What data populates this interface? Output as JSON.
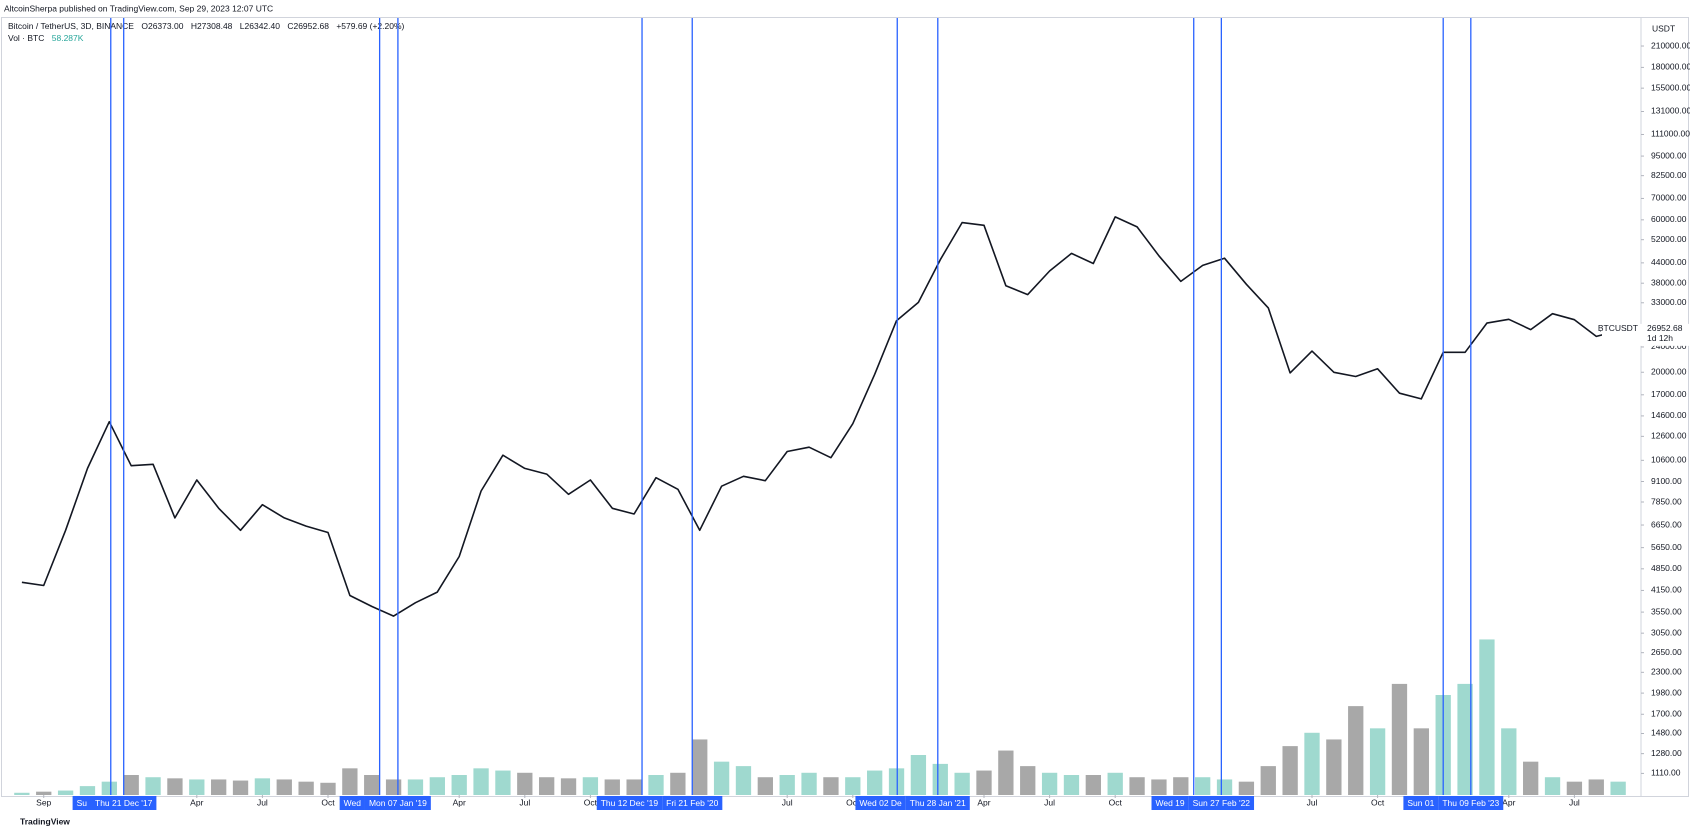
{
  "header": {
    "published": "AltcoinSherpa published on TradingView.com, Sep 29, 2023 12:07 UTC",
    "footer": "TradingView"
  },
  "chart_data": {
    "type": "line",
    "log_scale": true,
    "grid": false,
    "legend": {
      "open": "O26373.00",
      "high": "H27308.48",
      "low": "L26342.40",
      "close": "C26952.68",
      "change": "+579.69 (+2.20%)",
      "volume": "58.287K"
    },
    "currency": "USDT",
    "price_label": {
      "symbol": "BTCUSDT",
      "value": 26952.68,
      "countdown": "1d 12h"
    },
    "x": [
      "2017-08",
      "2017-09",
      "2017-10",
      "2017-11",
      "2017-12",
      "2018-01",
      "2018-02",
      "2018-03",
      "2018-04",
      "2018-05",
      "2018-06",
      "2018-07",
      "2018-08",
      "2018-09",
      "2018-10",
      "2018-11",
      "2018-12",
      "2019-01",
      "2019-02",
      "2019-03",
      "2019-04",
      "2019-05",
      "2019-06",
      "2019-07",
      "2019-08",
      "2019-09",
      "2019-10",
      "2019-11",
      "2019-12",
      "2020-01",
      "2020-02",
      "2020-03",
      "2020-04",
      "2020-05",
      "2020-06",
      "2020-07",
      "2020-08",
      "2020-09",
      "2020-10",
      "2020-11",
      "2020-12",
      "2021-01",
      "2021-02",
      "2021-03",
      "2021-04",
      "2021-05",
      "2021-06",
      "2021-07",
      "2021-08",
      "2021-09",
      "2021-10",
      "2021-11",
      "2021-12",
      "2022-01",
      "2022-02",
      "2022-03",
      "2022-04",
      "2022-05",
      "2022-06",
      "2022-07",
      "2022-08",
      "2022-09",
      "2022-10",
      "2022-11",
      "2022-12",
      "2023-01",
      "2023-02",
      "2023-03",
      "2023-04",
      "2023-05",
      "2023-06",
      "2023-07",
      "2023-08",
      "2023-09"
    ],
    "series": [
      {
        "name": "Bitcoin / TetherUS, 3D, BINANCE",
        "color": "#131722",
        "values": [
          4400,
          4300,
          6400,
          10000,
          14000,
          10200,
          10300,
          7000,
          9200,
          7500,
          6400,
          7700,
          7000,
          6600,
          6300,
          4000,
          3700,
          3450,
          3800,
          4100,
          5300,
          8500,
          11000,
          10000,
          9600,
          8300,
          9200,
          7500,
          7200,
          9350,
          8600,
          6400,
          8800,
          9450,
          9150,
          11300,
          11650,
          10800,
          13800,
          19700,
          29000,
          33100,
          45000,
          58800,
          57700,
          37300,
          35000,
          41500,
          47100,
          43800,
          61300,
          57000,
          46300,
          38500,
          43200,
          45500,
          37700,
          31800,
          19900,
          23300,
          20000,
          19400,
          20500,
          17200,
          16500,
          23100,
          23100,
          28500,
          29300,
          27200,
          30500,
          29200,
          25900,
          26950
        ]
      },
      {
        "name": "Vol · BTC",
        "axis": "y2",
        "up_color": "#9fd9cf",
        "down_color": "#a8a8a8",
        "values": [
          10000,
          15000,
          20000,
          40000,
          60000,
          90000,
          80000,
          75000,
          70000,
          70000,
          65000,
          75000,
          70000,
          60000,
          55000,
          120000,
          90000,
          70000,
          70000,
          80000,
          90000,
          120000,
          110000,
          100000,
          80000,
          75000,
          80000,
          70000,
          70000,
          90000,
          100000,
          250000,
          150000,
          130000,
          80000,
          90000,
          100000,
          80000,
          80000,
          110000,
          120000,
          180000,
          140000,
          100000,
          110000,
          200000,
          130000,
          100000,
          90000,
          90000,
          100000,
          80000,
          70000,
          80000,
          80000,
          70000,
          60000,
          130000,
          220000,
          280000,
          250000,
          400000,
          300000,
          500000,
          300000,
          450000,
          500000,
          700000,
          300000,
          150000,
          80000,
          60000,
          70000,
          60000
        ]
      }
    ],
    "xlim": [
      "2017-07",
      "2023-10"
    ],
    "xticks": [
      {
        "value": "2017-09",
        "label": "Sep"
      },
      {
        "value": "2018-04",
        "label": "Apr"
      },
      {
        "value": "2018-07",
        "label": "Jul"
      },
      {
        "value": "2018-10",
        "label": "Oct"
      },
      {
        "value": "2019-04",
        "label": "Apr"
      },
      {
        "value": "2019-07",
        "label": "Jul"
      },
      {
        "value": "2019-10",
        "label": "Oct"
      },
      {
        "value": "2020-07",
        "label": "Jul"
      },
      {
        "value": "2020-10",
        "label": "Oct"
      },
      {
        "value": "2021-04",
        "label": "Apr"
      },
      {
        "value": "2021-07",
        "label": "Jul"
      },
      {
        "value": "2021-10",
        "label": "Oct"
      },
      {
        "value": "2022-07",
        "label": "Jul"
      },
      {
        "value": "2022-10",
        "label": "Oct"
      },
      {
        "value": "2023-04",
        "label": "Apr"
      },
      {
        "value": "2023-07",
        "label": "Jul"
      }
    ],
    "markers": [
      {
        "x": "2017-12-03",
        "label": "Su"
      },
      {
        "x": "2017-12-21",
        "label": "Thu 21 Dec '17"
      },
      {
        "x": "2018-12-12",
        "label": "Wed"
      },
      {
        "x": "2019-01-07",
        "label": "Mon 07 Jan '19"
      },
      {
        "x": "2019-12-12",
        "label": "Thu 12 Dec '19"
      },
      {
        "x": "2020-02-21",
        "label": "Fri 21 Feb '20"
      },
      {
        "x": "2020-12-02",
        "label": "Wed 02 De"
      },
      {
        "x": "2021-01-28",
        "label": "Thu 28 Jan '21"
      },
      {
        "x": "2022-01-19",
        "label": "Wed 19"
      },
      {
        "x": "2022-02-27",
        "label": "Sun 27 Feb '22"
      },
      {
        "x": "2023-01-01",
        "label": "Sun 01"
      },
      {
        "x": "2023-02-09",
        "label": "Thu 09 Feb '23"
      }
    ],
    "ylim": [
      950,
      257000
    ],
    "yticks": [
      {
        "value": 210000,
        "label": "210000.00"
      },
      {
        "value": 180000,
        "label": "180000.00"
      },
      {
        "value": 155000,
        "label": "155000.00"
      },
      {
        "value": 131000,
        "label": "131000.00"
      },
      {
        "value": 111000,
        "label": "111000.00"
      },
      {
        "value": 95000,
        "label": "95000.00"
      },
      {
        "value": 82500,
        "label": "82500.00"
      },
      {
        "value": 70000,
        "label": "70000.00"
      },
      {
        "value": 60000,
        "label": "60000.00"
      },
      {
        "value": 52000,
        "label": "52000.00"
      },
      {
        "value": 44000,
        "label": "44000.00"
      },
      {
        "value": 38000,
        "label": "38000.00"
      },
      {
        "value": 33000,
        "label": "33000.00"
      },
      {
        "value": 24000,
        "label": "24000.00"
      },
      {
        "value": 20000,
        "label": "20000.00"
      },
      {
        "value": 17000,
        "label": "17000.00"
      },
      {
        "value": 14600,
        "label": "14600.00"
      },
      {
        "value": 12600,
        "label": "12600.00"
      },
      {
        "value": 10600,
        "label": "10600.00"
      },
      {
        "value": 9100,
        "label": "9100.00"
      },
      {
        "value": 7850,
        "label": "7850.00"
      },
      {
        "value": 6650,
        "label": "6650.00"
      },
      {
        "value": 5650,
        "label": "5650.00"
      },
      {
        "value": 4850,
        "label": "4850.00"
      },
      {
        "value": 4150,
        "label": "4150.00"
      },
      {
        "value": 3550,
        "label": "3550.00"
      },
      {
        "value": 3050,
        "label": "3050.00"
      },
      {
        "value": 2650,
        "label": "2650.00"
      },
      {
        "value": 2300,
        "label": "2300.00"
      },
      {
        "value": 1980,
        "label": "1980.00"
      },
      {
        "value": 1700,
        "label": "1700.00"
      },
      {
        "value": 1480,
        "label": "1480.00"
      },
      {
        "value": 1280,
        "label": "1280.00"
      },
      {
        "value": 1110,
        "label": "1110.00"
      }
    ],
    "y2lim": [
      0,
      900000
    ],
    "marker_color": "#2962ff"
  }
}
